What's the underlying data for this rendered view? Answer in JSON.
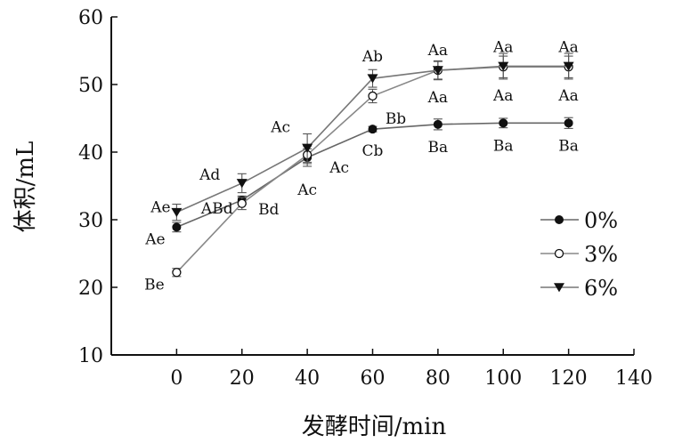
{
  "chart_data": {
    "type": "line",
    "xlabel": "发酵时间/min",
    "ylabel": "体积/mL",
    "xlim": [
      -20,
      140
    ],
    "ylim": [
      10,
      60
    ],
    "xticks": [
      0,
      20,
      40,
      60,
      80,
      100,
      120,
      140
    ],
    "yticks": [
      10,
      20,
      30,
      40,
      50,
      60
    ],
    "grid": false,
    "legend_position": "right",
    "x": [
      0,
      20,
      40,
      60,
      80,
      100,
      120
    ],
    "series": [
      {
        "name": "0%",
        "marker": "filled-circle",
        "color": "#111111",
        "values": [
          28.9,
          32.9,
          39.2,
          43.4,
          44.1,
          44.3,
          44.3
        ],
        "errors": [
          0.7,
          0.6,
          1.3,
          0.4,
          0.8,
          0.7,
          0.8
        ],
        "labels": [
          "Ae",
          "Bd",
          "Ac",
          "Cb",
          "Ba",
          "Ba",
          "Ba"
        ]
      },
      {
        "name": "3%",
        "marker": "open-circle",
        "color": "#111111",
        "values": [
          22.2,
          32.4,
          39.6,
          48.3,
          52.1,
          52.6,
          52.6
        ],
        "errors": [
          0.6,
          0.9,
          1.3,
          1.0,
          1.3,
          1.6,
          1.6
        ],
        "labels": [
          "Be",
          "ABd",
          "Ac",
          "Bb",
          "Aa",
          "Aa",
          "Aa"
        ]
      },
      {
        "name": "6%",
        "marker": "filled-triangle-down",
        "color": "#111111",
        "values": [
          31.1,
          35.4,
          40.6,
          50.9,
          52.1,
          52.7,
          52.7
        ],
        "errors": [
          1.2,
          1.4,
          2.1,
          1.3,
          1.4,
          1.9,
          1.9
        ],
        "labels": [
          "Ae",
          "Ad",
          "Ac",
          "Ab",
          "Aa",
          "Aa",
          "Aa"
        ]
      }
    ]
  }
}
